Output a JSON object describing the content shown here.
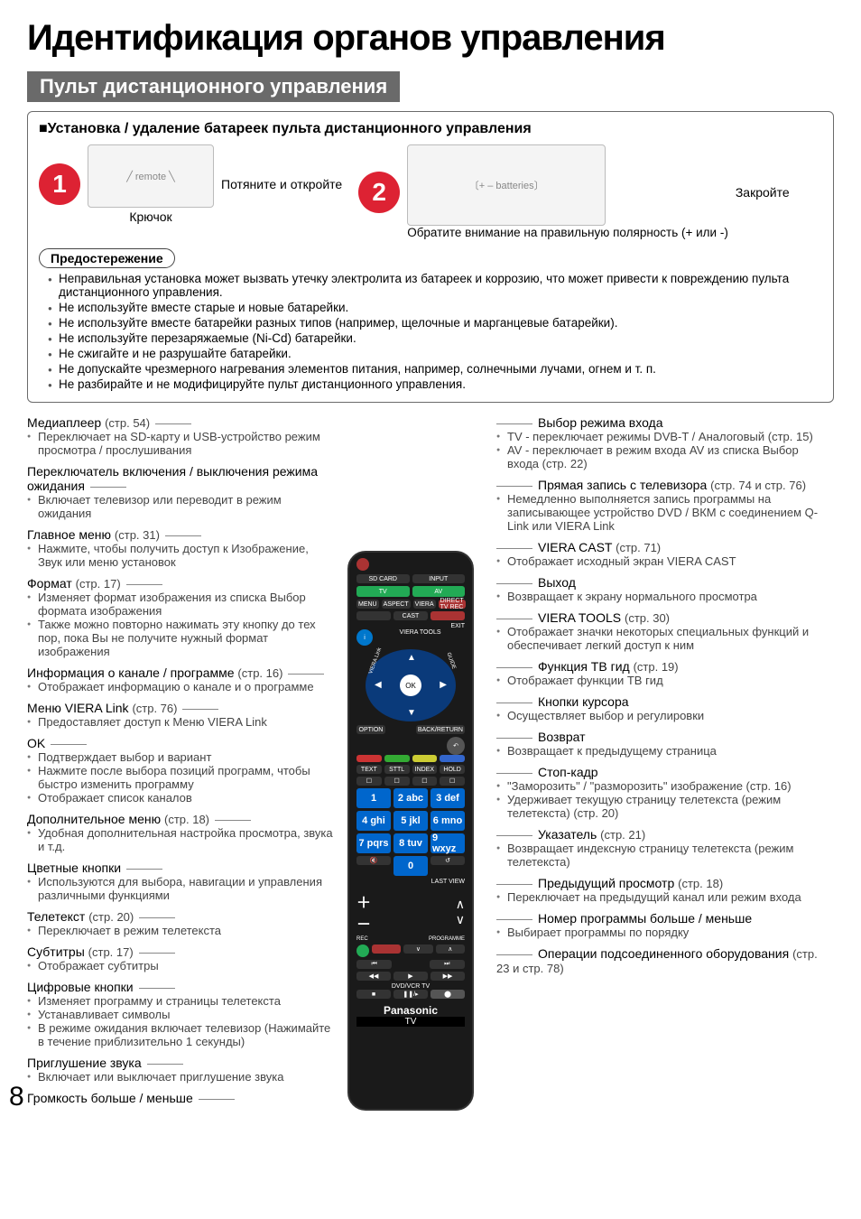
{
  "page": {
    "title": "Идентификация органов управления",
    "section": "Пульт дистанционного управления",
    "page_number": "8"
  },
  "install": {
    "subtitle": "■Установка / удаление батареек пульта дистанционного управления",
    "step1_num": "1",
    "step1_pull": "Потяните и откройте",
    "hook": "Крючок",
    "step2_num": "2",
    "step2_close": "Закройте",
    "polarity": "Обратите внимание на правильную полярность (+ или -)",
    "caution_label": "Предостережение",
    "cautions": [
      "Неправильная установка может вызвать утечку электролита из батареек и коррозию, что может привести к повреждению пульта дистанционного управления.",
      "Не используйте вместе старые и новые батарейки.",
      "Не используйте вместе батарейки разных типов (например, щелочные и марганцевые батарейки).",
      "Не используйте перезаряжаемые (Ni-Cd) батарейки.",
      "Не сжигайте и не разрушайте батарейки.",
      "Не допускайте чрезмерного нагревания элементов питания, например, солнечными лучами, огнем и т. п.",
      "Не разбирайте и не модифицируйте пульт дистанционного управления."
    ]
  },
  "left": [
    {
      "t": "Медиаплеер",
      "r": "(стр. 54)",
      "s": [
        "Переключает на SD-карту и USB-устройство режим просмотра / прослушивания"
      ]
    },
    {
      "t": "Переключатель включения / выключения режима ожидания",
      "r": "",
      "s": [
        "Включает телевизор или переводит в режим ожидания"
      ]
    },
    {
      "t": "Главное меню",
      "r": "(стр. 31)",
      "s": [
        "Нажмите, чтобы получить доступ к Изображение, Звук или меню установок"
      ]
    },
    {
      "t": "Формат",
      "r": "(стр. 17)",
      "s": [
        "Изменяет формат изображения из списка Выбор формата изображения",
        "Также можно повторно нажимать эту кнопку до тех пор, пока Вы не получите нужный формат изображения"
      ]
    },
    {
      "t": "Информация о канале / программе",
      "r": "(стр. 16)",
      "s": [
        "Отображает информацию о канале и о программе"
      ]
    },
    {
      "t": "Меню VIERA Link",
      "r": "(стр. 76)",
      "s": [
        "Предоставляет доступ к Меню VIERA Link"
      ]
    },
    {
      "t": "OK",
      "r": "",
      "s": [
        "Подтверждает выбор и вариант",
        "Нажмите после выбора позиций программ, чтобы быстро изменить программу",
        "Отображает список каналов"
      ]
    },
    {
      "t": "Дополнительное меню",
      "r": "(стр. 18)",
      "s": [
        "Удобная дополнительная настройка просмотра, звука и т.д."
      ]
    },
    {
      "t": "Цветные кнопки",
      "r": "",
      "s": [
        "Используются для выбора, навигации и управления различными функциями"
      ]
    },
    {
      "t": "Телетекст",
      "r": "(стр. 20)",
      "s": [
        "Переключает в режим телетекста"
      ]
    },
    {
      "t": "Субтитры",
      "r": "(стр. 17)",
      "s": [
        "Отображает субтитры"
      ]
    },
    {
      "t": "Цифровые кнопки",
      "r": "",
      "s": [
        "Изменяет программу и страницы телетекста",
        "Устанавливает символы",
        "В режиме ожидания включает телевизор (Нажимайте в течение приблизительно 1 секунды)"
      ]
    },
    {
      "t": "Приглушение звука",
      "r": "",
      "s": [
        "Включает или выключает приглушение звука"
      ]
    },
    {
      "t": "Громкость больше / меньше",
      "r": "",
      "s": []
    }
  ],
  "right": [
    {
      "t": "Выбор режима входа",
      "r": "",
      "s": [
        "TV - переключает режимы DVB-T / Аналоговый (стр. 15)",
        "AV - переключает в режим входа AV из списка Выбор входа (стр. 22)"
      ]
    },
    {
      "t": "Прямая запись с телевизора",
      "r": "(стр. 74 и стр. 76)",
      "s": [
        "Немедленно выполняется запись программы на записывающее устройство DVD / ВКМ с соединением Q-Link или VIERA Link"
      ]
    },
    {
      "t": "VIERA CAST",
      "r": "(стр. 71)",
      "s": [
        "Отображает исходный экран VIERA CAST"
      ]
    },
    {
      "t": "Выход",
      "r": "",
      "s": [
        "Возвращает к экрану нормального просмотра"
      ]
    },
    {
      "t": "VIERA TOOLS",
      "r": "(стр. 30)",
      "s": [
        "Отображает значки некоторых специальных функций и обеспечивает легкий доступ к ним"
      ]
    },
    {
      "t": "Функция ТВ гид",
      "r": "(стр. 19)",
      "s": [
        "Отображает функции ТВ гид"
      ]
    },
    {
      "t": "Кнопки курсора",
      "r": "",
      "s": [
        "Осуществляет выбор и регулировки"
      ]
    },
    {
      "t": "Возврат",
      "r": "",
      "s": [
        "Возвращает к предыдущему страница"
      ]
    },
    {
      "t": "Стоп-кадр",
      "r": "",
      "s": [
        "\"Заморозить\" / \"разморозить\" изображение (стр. 16)",
        "Удерживает текущую страницу телетекста (режим телетекста) (стр. 20)"
      ]
    },
    {
      "t": "Указатель",
      "r": "(стр. 21)",
      "s": [
        "Возвращает индексную страницу телетекста (режим телетекста)"
      ]
    },
    {
      "t": "Предыдущий просмотр",
      "r": "(стр. 18)",
      "s": [
        "Переключает на предыдущий канал или режим входа"
      ]
    },
    {
      "t": "Номер программы больше / меньше",
      "r": "",
      "s": [
        "Выбирает программы по порядку"
      ]
    },
    {
      "t": "Операции подсоединенного оборудования",
      "r": "(стр. 23 и стр. 78)",
      "s": []
    }
  ],
  "remote": {
    "toprow": [
      "SD CARD",
      "INPUT"
    ],
    "tvav": [
      "TV",
      "AV"
    ],
    "menu_row": [
      "MENU",
      "ASPECT",
      "VIERA",
      "DIRECT TV REC"
    ],
    "cast_row": [
      "",
      "CAST",
      ""
    ],
    "exit": "EXIT",
    "info": "i",
    "tools": "VIERA TOOLS",
    "ok": "OK",
    "option": "OPTION",
    "back": "BACK/RETURN",
    "guide": "GUIDE",
    "vlink": "VIERA Link",
    "text_row": [
      "TEXT",
      "STTL",
      "INDEX",
      "HOLD"
    ],
    "nums": [
      "1",
      "2 abc",
      "3 def",
      "4 ghi",
      "5 jkl",
      "6 mno",
      "7 pqrs",
      "8 tuv",
      "9 wxyz",
      "",
      "0",
      ""
    ],
    "lastview": "LAST VIEW",
    "rec": "REC",
    "prog": "PROGRAMME",
    "dvdvcr": "DVD/VCR   TV",
    "brand": "Panasonic",
    "tv_label": "TV"
  },
  "colors": {
    "accent": "#d23",
    "bar": "#6a6a6a",
    "remote_bg": "#1a1a1a",
    "num_blue": "#06c"
  }
}
